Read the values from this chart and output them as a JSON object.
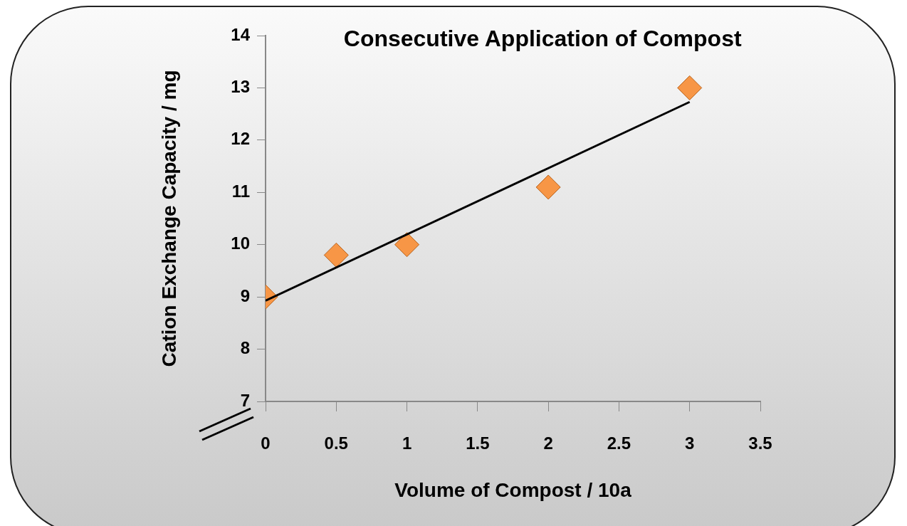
{
  "chart_data": {
    "type": "scatter",
    "title": "Consecutive Application of Compost",
    "xlabel": "Volume of Compost / 10a",
    "ylabel": "Cation Exchange Capacity / mg",
    "xlim": [
      0,
      3.5
    ],
    "xticks": [
      0,
      0.5,
      1,
      1.5,
      2,
      2.5,
      3,
      3.5
    ],
    "ylim": [
      7,
      14
    ],
    "yticks": [
      7,
      8,
      9,
      10,
      11,
      12,
      13,
      14
    ],
    "grid": false,
    "legend": false,
    "marker": "diamond",
    "series": [
      {
        "type": "scatter",
        "color": "#f79646",
        "x": [
          0,
          0.5,
          1,
          2,
          3
        ],
        "values": [
          9,
          9.8,
          10,
          11.1,
          13
        ]
      },
      {
        "type": "line",
        "color": "#000000",
        "x": [
          0,
          3
        ],
        "values": [
          8.93,
          12.73
        ],
        "marker": "none",
        "line_style": "solid"
      }
    ]
  }
}
